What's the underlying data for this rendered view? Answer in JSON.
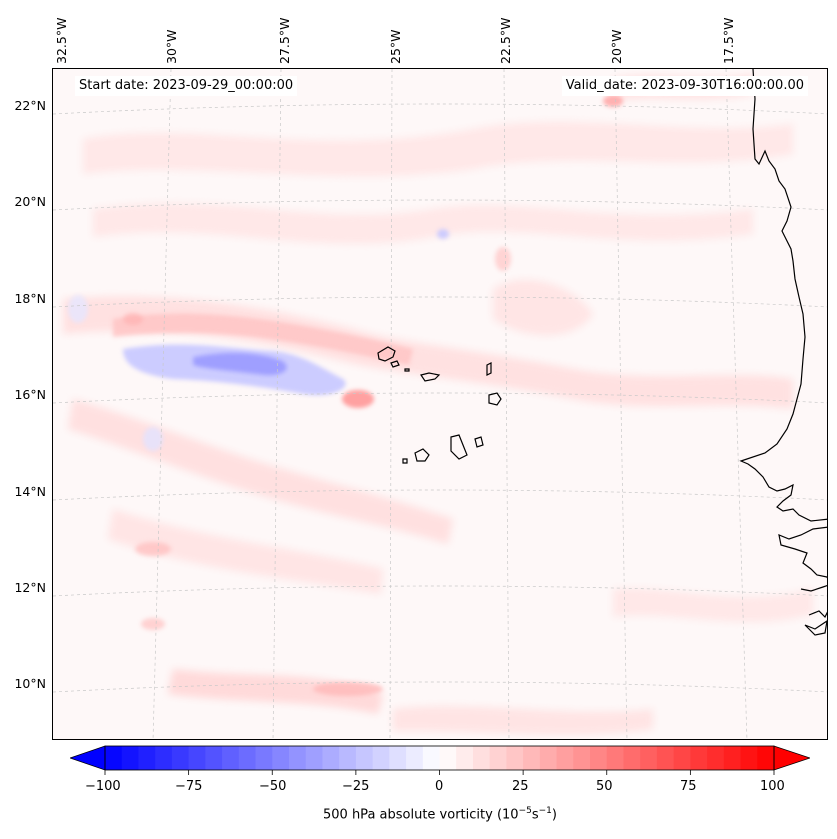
{
  "header": {
    "start_date": "Start date: 2023-09-29_00:00:00",
    "valid_date": "Valid_date: 2023-09-30T16:00:00.00"
  },
  "longitude_labels": [
    "32.5°W",
    "30°W",
    "27.5°W",
    "25°W",
    "22.5°W",
    "20°W",
    "17.5°W"
  ],
  "latitude_labels": [
    "22°N",
    "20°N",
    "18°N",
    "16°N",
    "14°N",
    "12°N",
    "10°N"
  ],
  "colorbar": {
    "label_prefix": "500 hPa absolute vorticity (10",
    "label_exp1": "−5",
    "label_mid": "s",
    "label_exp2": "−1",
    "label_suffix": ")",
    "ticks": [
      "−100",
      "−75",
      "−50",
      "−25",
      "0",
      "25",
      "50",
      "75",
      "100"
    ],
    "min": -100,
    "max": 100,
    "levels": 40,
    "color_negative": "#0000ff",
    "color_zero": "#ffffff",
    "color_positive": "#ff0000"
  },
  "field": {
    "background_color": "#fef8f8",
    "coastline_color": "#000000",
    "gridline_color": "#c8c8c8"
  }
}
